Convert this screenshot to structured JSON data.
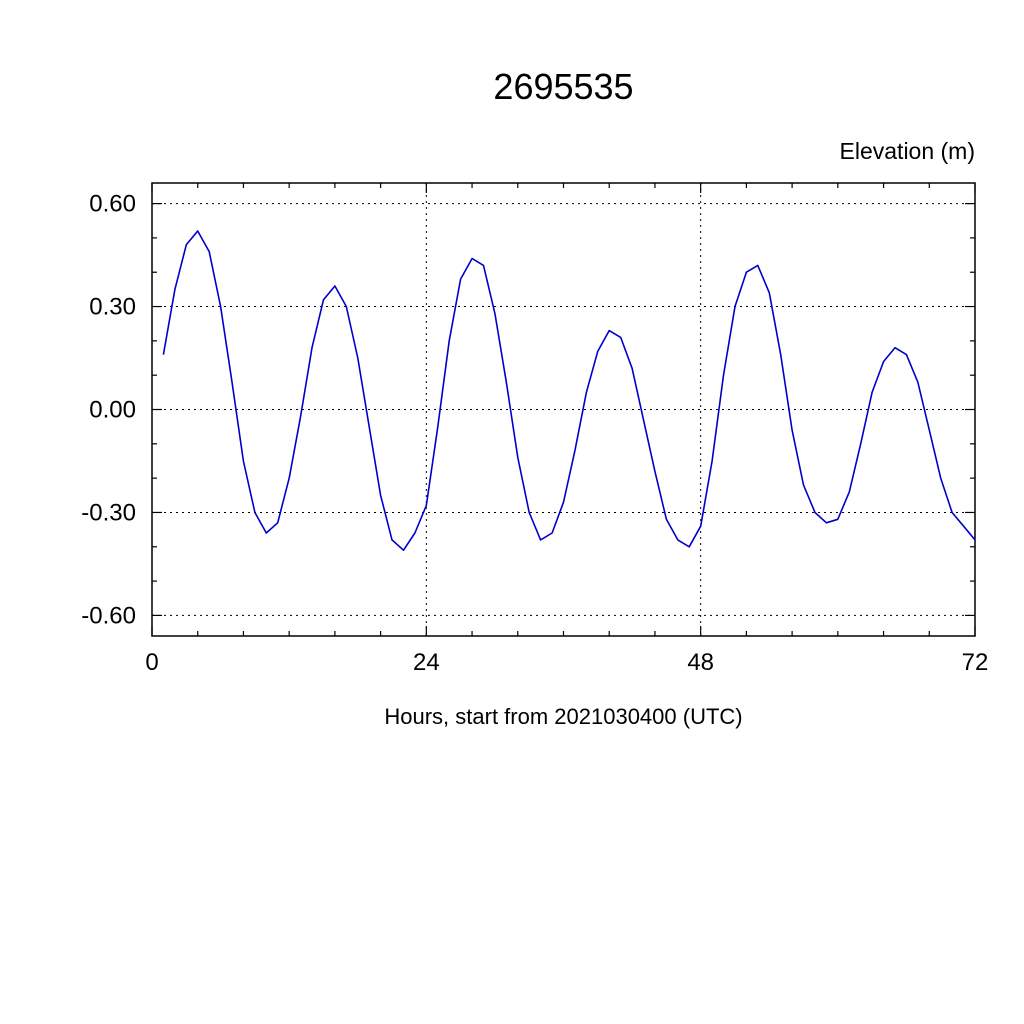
{
  "chart_data": {
    "type": "line",
    "title": "2695535",
    "ylabel": "Elevation (m)",
    "xlabel": "Hours, start from 2021030400 (UTC)",
    "xlim": [
      0,
      72
    ],
    "ylim": [
      -0.66,
      0.66
    ],
    "xticks": {
      "major": [
        0,
        24,
        48,
        72
      ],
      "labels": [
        "0",
        "24",
        "48",
        "72"
      ],
      "minor_interval": 4
    },
    "yticks": {
      "major": [
        -0.6,
        -0.3,
        0.0,
        0.3,
        0.6
      ],
      "labels": [
        "-0.60",
        "-0.30",
        "0.00",
        "0.30",
        "0.60"
      ],
      "minor_interval": 0.1
    },
    "grid": {
      "x": [
        24,
        48
      ],
      "y": [
        -0.6,
        -0.3,
        0.0,
        0.3,
        0.6
      ],
      "style": "dotted"
    },
    "legend_position": "none",
    "series": [
      {
        "name": "elevation",
        "color": "#0000cc",
        "x": [
          1,
          2,
          3,
          4,
          5,
          6,
          7,
          8,
          9,
          10,
          11,
          12,
          13,
          14,
          15,
          16,
          17,
          18,
          19,
          20,
          21,
          22,
          23,
          24,
          25,
          26,
          27,
          28,
          29,
          30,
          31,
          32,
          33,
          34,
          35,
          36,
          37,
          38,
          39,
          40,
          41,
          42,
          43,
          44,
          45,
          46,
          47,
          48,
          49,
          50,
          51,
          52,
          53,
          54,
          55,
          56,
          57,
          58,
          59,
          60,
          61,
          62,
          63,
          64,
          65,
          66,
          67,
          68,
          69,
          70,
          71,
          72
        ],
        "y": [
          0.16,
          0.35,
          0.48,
          0.52,
          0.46,
          0.3,
          0.08,
          -0.15,
          -0.3,
          -0.36,
          -0.33,
          -0.2,
          -0.02,
          0.18,
          0.32,
          0.36,
          0.3,
          0.15,
          -0.05,
          -0.25,
          -0.38,
          -0.41,
          -0.36,
          -0.28,
          -0.05,
          0.2,
          0.38,
          0.44,
          0.42,
          0.28,
          0.08,
          -0.14,
          -0.3,
          -0.38,
          -0.36,
          -0.27,
          -0.12,
          0.05,
          0.17,
          0.23,
          0.21,
          0.12,
          -0.03,
          -0.18,
          -0.32,
          -0.38,
          -0.4,
          -0.34,
          -0.15,
          0.1,
          0.3,
          0.4,
          0.42,
          0.34,
          0.16,
          -0.06,
          -0.22,
          -0.3,
          -0.33,
          -0.32,
          -0.24,
          -0.1,
          0.05,
          0.14,
          0.18,
          0.16,
          0.08,
          -0.06,
          -0.2,
          -0.3,
          -0.34,
          -0.38
        ]
      }
    ]
  }
}
